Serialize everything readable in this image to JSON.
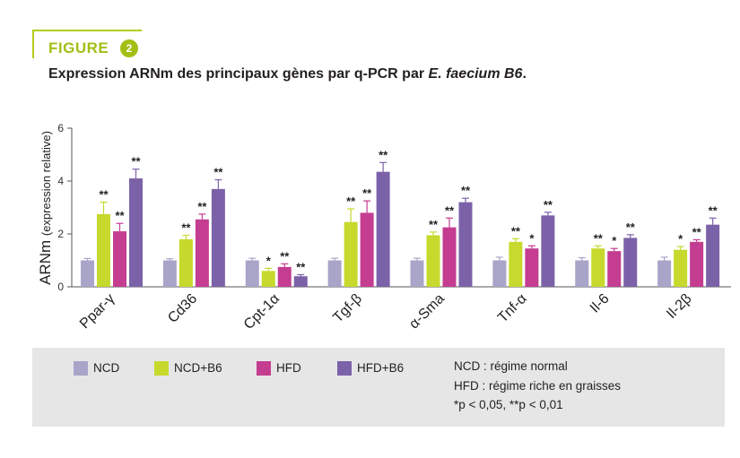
{
  "figure": {
    "label": "FIGURE",
    "number": "2",
    "accent_color": "#a3bf15",
    "title_main": "Expression ARNm des principaux gènes par q-PCR par ",
    "title_species": "E. faecium B6",
    "title_end": "."
  },
  "chart_data": {
    "type": "bar",
    "ylabel_main": "ARNm",
    "ylabel_sub": "(expression relative)",
    "ylim": [
      0,
      6
    ],
    "yticks": [
      "0",
      "2",
      "4",
      "6"
    ],
    "grid": false,
    "legend_position": "bottom",
    "categories": [
      "Ppar-γ",
      "Cd36",
      "Cpt-1α",
      "Tgf-β",
      "α-Sma",
      "Tnf-α",
      "Il-6",
      "Il-2β"
    ],
    "series": [
      {
        "name": "NCD",
        "color": "#a9a5c9",
        "values": [
          1.0,
          1.0,
          1.0,
          1.0,
          1.0,
          1.0,
          1.0,
          1.0
        ],
        "errors": [
          0.07,
          0.06,
          0.08,
          0.08,
          0.08,
          0.12,
          0.1,
          0.12
        ],
        "sig": [
          "",
          "",
          "",
          "",
          "",
          "",
          "",
          ""
        ]
      },
      {
        "name": "NCD+B6",
        "color": "#c6d92c",
        "values": [
          2.75,
          1.8,
          0.6,
          2.45,
          1.95,
          1.7,
          1.45,
          1.4
        ],
        "errors": [
          0.45,
          0.15,
          0.1,
          0.5,
          0.12,
          0.12,
          0.1,
          0.12
        ],
        "sig": [
          "**",
          "**",
          "*",
          "**",
          "**",
          "**",
          "**",
          "*"
        ]
      },
      {
        "name": "HFD",
        "color": "#c43d91",
        "values": [
          2.1,
          2.55,
          0.75,
          2.8,
          2.25,
          1.45,
          1.35,
          1.7
        ],
        "errors": [
          0.3,
          0.2,
          0.12,
          0.45,
          0.35,
          0.1,
          0.1,
          0.08
        ],
        "sig": [
          "**",
          "**",
          "**",
          "**",
          "**",
          "*",
          "*",
          "**"
        ]
      },
      {
        "name": "HFD+B6",
        "color": "#7b62a8",
        "values": [
          4.1,
          3.7,
          0.4,
          4.35,
          3.2,
          2.7,
          1.85,
          2.35
        ],
        "errors": [
          0.35,
          0.35,
          0.06,
          0.35,
          0.15,
          0.12,
          0.12,
          0.25
        ],
        "sig": [
          "**",
          "**",
          "**",
          "**",
          "**",
          "**",
          "**",
          "**"
        ]
      }
    ]
  },
  "legend": {
    "items": [
      "NCD",
      "NCD+B6",
      "HFD",
      "HFD+B6"
    ],
    "notes": [
      "NCD : régime normal",
      "HFD : régime riche en graisses",
      "*p < 0,05, **p < 0,01"
    ]
  }
}
